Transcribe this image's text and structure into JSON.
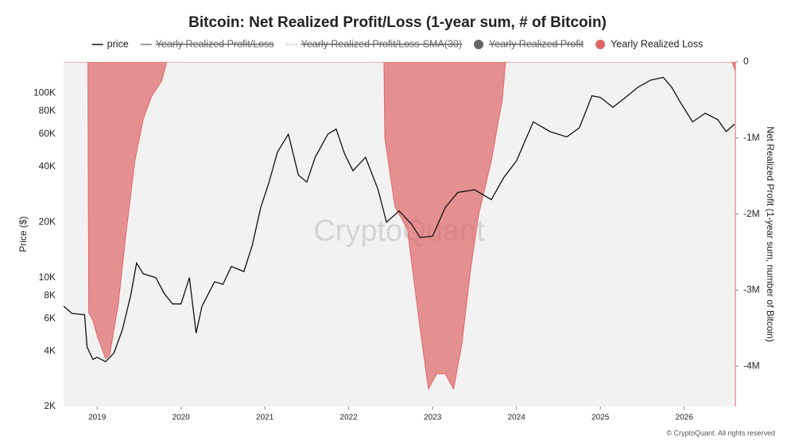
{
  "chart_data": {
    "type": "line-area",
    "title": "Bitcoin: Net Realized Profit/Loss (1-year sum, # of Bitcoin)",
    "y_label": "Price ($)",
    "y2_label": "Net Realized Profit (1-year sum, number of Bitcoin)",
    "watermark": "CryptoQuant",
    "footer": "© CryptoQuant. All rights reserved",
    "log_y": true,
    "grid": false,
    "legend": "top",
    "xlim": [
      2018.6,
      2026.61
    ],
    "xticks": [
      2019,
      2020,
      2021,
      2022,
      2023,
      2024,
      2025,
      2026
    ],
    "ylim": [
      2000,
      148000
    ],
    "yticks": [
      {
        "value": 2000,
        "label": "2K"
      },
      {
        "value": 4000,
        "label": "4K"
      },
      {
        "value": 6000,
        "label": "6K"
      },
      {
        "value": 8000,
        "label": "8K"
      },
      {
        "value": 10000,
        "label": "10K"
      },
      {
        "value": 20000,
        "label": "20K"
      },
      {
        "value": 40000,
        "label": "40K"
      },
      {
        "value": 60000,
        "label": "60K"
      },
      {
        "value": 80000,
        "label": "80K"
      },
      {
        "value": 100000,
        "label": "100K"
      }
    ],
    "y2lim": [
      -4530000,
      0
    ],
    "y2ticks": [
      0,
      {
        "value": -1000000,
        "label": "-1M"
      },
      {
        "value": -2000000,
        "label": "-2M"
      },
      {
        "value": -3000000,
        "label": "-3M"
      },
      {
        "value": -4000000,
        "label": "-4M"
      }
    ],
    "hidden_series": [
      {
        "name": "Yearly Realized Profit/Loss",
        "color": "#777777",
        "marker": "line"
      },
      {
        "name": "Yearly Realized Profit/Loss-SMA(30)",
        "color": "#999999",
        "marker": "dotted"
      },
      {
        "name": "Yearly Realized Profit",
        "color": "#666666",
        "marker": "circle"
      }
    ],
    "series": [
      {
        "name": "price",
        "color": "#111111",
        "kind": "line",
        "axis": "y",
        "marker": "line",
        "x": [
          2018.6,
          2018.7,
          2018.85,
          2018.88,
          2018.95,
          2019.0,
          2019.1,
          2019.2,
          2019.3,
          2019.4,
          2019.47,
          2019.55,
          2019.7,
          2019.8,
          2019.9,
          2020.0,
          2020.1,
          2020.18,
          2020.25,
          2020.4,
          2020.5,
          2020.6,
          2020.75,
          2020.85,
          2020.95,
          2021.05,
          2021.15,
          2021.28,
          2021.4,
          2021.5,
          2021.6,
          2021.75,
          2021.85,
          2021.95,
          2022.05,
          2022.2,
          2022.35,
          2022.45,
          2022.6,
          2022.75,
          2022.85,
          2023.0,
          2023.15,
          2023.3,
          2023.5,
          2023.7,
          2023.85,
          2024.0,
          2024.2,
          2024.4,
          2024.6,
          2024.75,
          2024.9,
          2025.0,
          2025.15,
          2025.3,
          2025.45,
          2025.6,
          2025.75,
          2025.85,
          2025.95,
          2026.1,
          2026.25,
          2026.4,
          2026.5,
          2026.6
        ],
        "values": [
          7000,
          6400,
          6300,
          4200,
          3600,
          3700,
          3500,
          3900,
          5200,
          8000,
          12000,
          10500,
          10000,
          8200,
          7200,
          7200,
          10000,
          5000,
          7000,
          9500,
          9200,
          11500,
          10800,
          15000,
          24000,
          33000,
          48000,
          60000,
          36000,
          33000,
          45000,
          60000,
          64000,
          47000,
          38000,
          45000,
          30000,
          20000,
          23000,
          19500,
          16500,
          16800,
          24000,
          29000,
          30000,
          26500,
          35000,
          43000,
          70000,
          62000,
          58000,
          65000,
          97000,
          95000,
          84000,
          95000,
          108000,
          118000,
          122000,
          108000,
          90000,
          70000,
          78000,
          72000,
          62000,
          68000
        ]
      },
      {
        "name": "Yearly Realized Loss",
        "color": "#e06666",
        "kind": "area",
        "axis": "y2",
        "marker": "circle",
        "x": [
          2018.6,
          2018.89,
          2018.9,
          2018.95,
          2019.0,
          2019.1,
          2019.15,
          2019.25,
          2019.35,
          2019.45,
          2019.55,
          2019.65,
          2019.77,
          2019.83,
          2022.42,
          2022.43,
          2022.55,
          2022.7,
          2022.85,
          2022.95,
          2023.05,
          2023.15,
          2023.25,
          2023.35,
          2023.45,
          2023.55,
          2023.7,
          2023.83,
          2023.87,
          2026.57,
          2026.61
        ],
        "values": [
          0,
          0,
          -3300000,
          -3400000,
          -3600000,
          -3900000,
          -3850000,
          -3200000,
          -2200000,
          -1300000,
          -750000,
          -450000,
          -250000,
          0,
          0,
          -1000000,
          -1900000,
          -2200000,
          -3500000,
          -4300000,
          -4100000,
          -4100000,
          -4300000,
          -3700000,
          -2750000,
          -2000000,
          -1300000,
          -500000,
          0,
          0,
          -120000
        ]
      }
    ]
  }
}
